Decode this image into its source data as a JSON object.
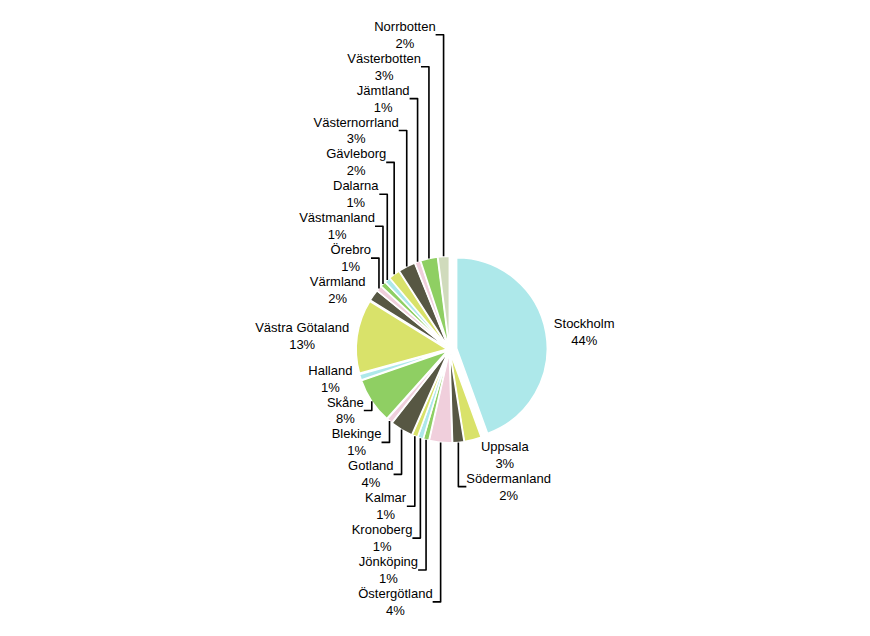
{
  "chart_data": {
    "type": "pie",
    "categories": [
      "Stockholm",
      "Uppsala",
      "Södermanland",
      "Östergötland",
      "Jönköping",
      "Kronoberg",
      "Kalmar",
      "Gotland",
      "Blekinge",
      "Skåne",
      "Halland",
      "Västra Götaland",
      "Värmland",
      "Örebro",
      "Västmanland",
      "Dalarna",
      "Gävleborg",
      "Västernorrland",
      "Jämtland",
      "Västerbotten",
      "Norrbotten"
    ],
    "values": [
      44,
      3,
      2,
      4,
      1,
      1,
      1,
      4,
      1,
      8,
      1,
      13,
      2,
      1,
      1,
      1,
      2,
      3,
      1,
      3,
      2
    ],
    "value_labels": [
      "44%",
      "3%",
      "2%",
      "4%",
      "1%",
      "1%",
      "1%",
      "4%",
      "1%",
      "8%",
      "1%",
      "13%",
      "2%",
      "1%",
      "1%",
      "1%",
      "2%",
      "3%",
      "1%",
      "3%",
      "2%"
    ],
    "colors": [
      "#ade8ea",
      "#d9e26a",
      "#575743",
      "#f0cfdc",
      "#8fcf63",
      "#ade8ea",
      "#d9e26a",
      "#575743",
      "#f0cfdc",
      "#8fcf63",
      "#ade8ea",
      "#d9e26a",
      "#575743",
      "#f0cfdc",
      "#8fcf63",
      "#ade8ea",
      "#d9e26a",
      "#575743",
      "#f0cfdc",
      "#8fcf63",
      "#d0dbbc"
    ],
    "data_labels": true
  }
}
